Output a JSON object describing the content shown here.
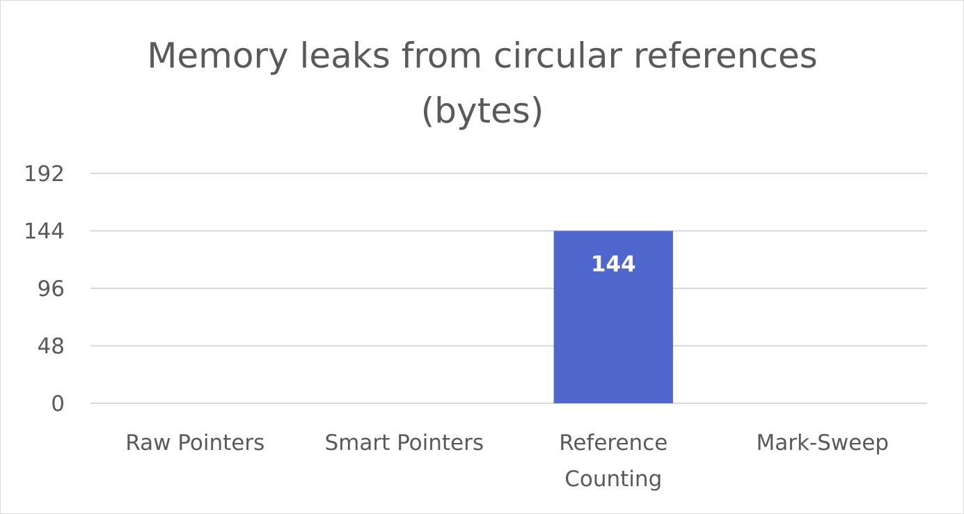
{
  "chart_data": {
    "type": "bar",
    "title_lines": [
      "Memory leaks from circular references",
      "(bytes)"
    ],
    "categories": [
      [
        "Raw Pointers"
      ],
      [
        "Smart Pointers"
      ],
      [
        "Reference",
        "Counting"
      ],
      [
        "Mark-Sweep"
      ]
    ],
    "values": [
      0,
      0,
      144,
      0
    ],
    "data_labels": [
      "",
      "",
      "144",
      ""
    ],
    "ylim": [
      0,
      192
    ],
    "yticks": [
      0,
      48,
      96,
      144,
      192
    ],
    "grid": true,
    "legend": "none",
    "colors": {
      "bar": "#4f67cc",
      "grid": "#d9d9d9",
      "text": "#595959",
      "label": "#ffffff"
    }
  }
}
